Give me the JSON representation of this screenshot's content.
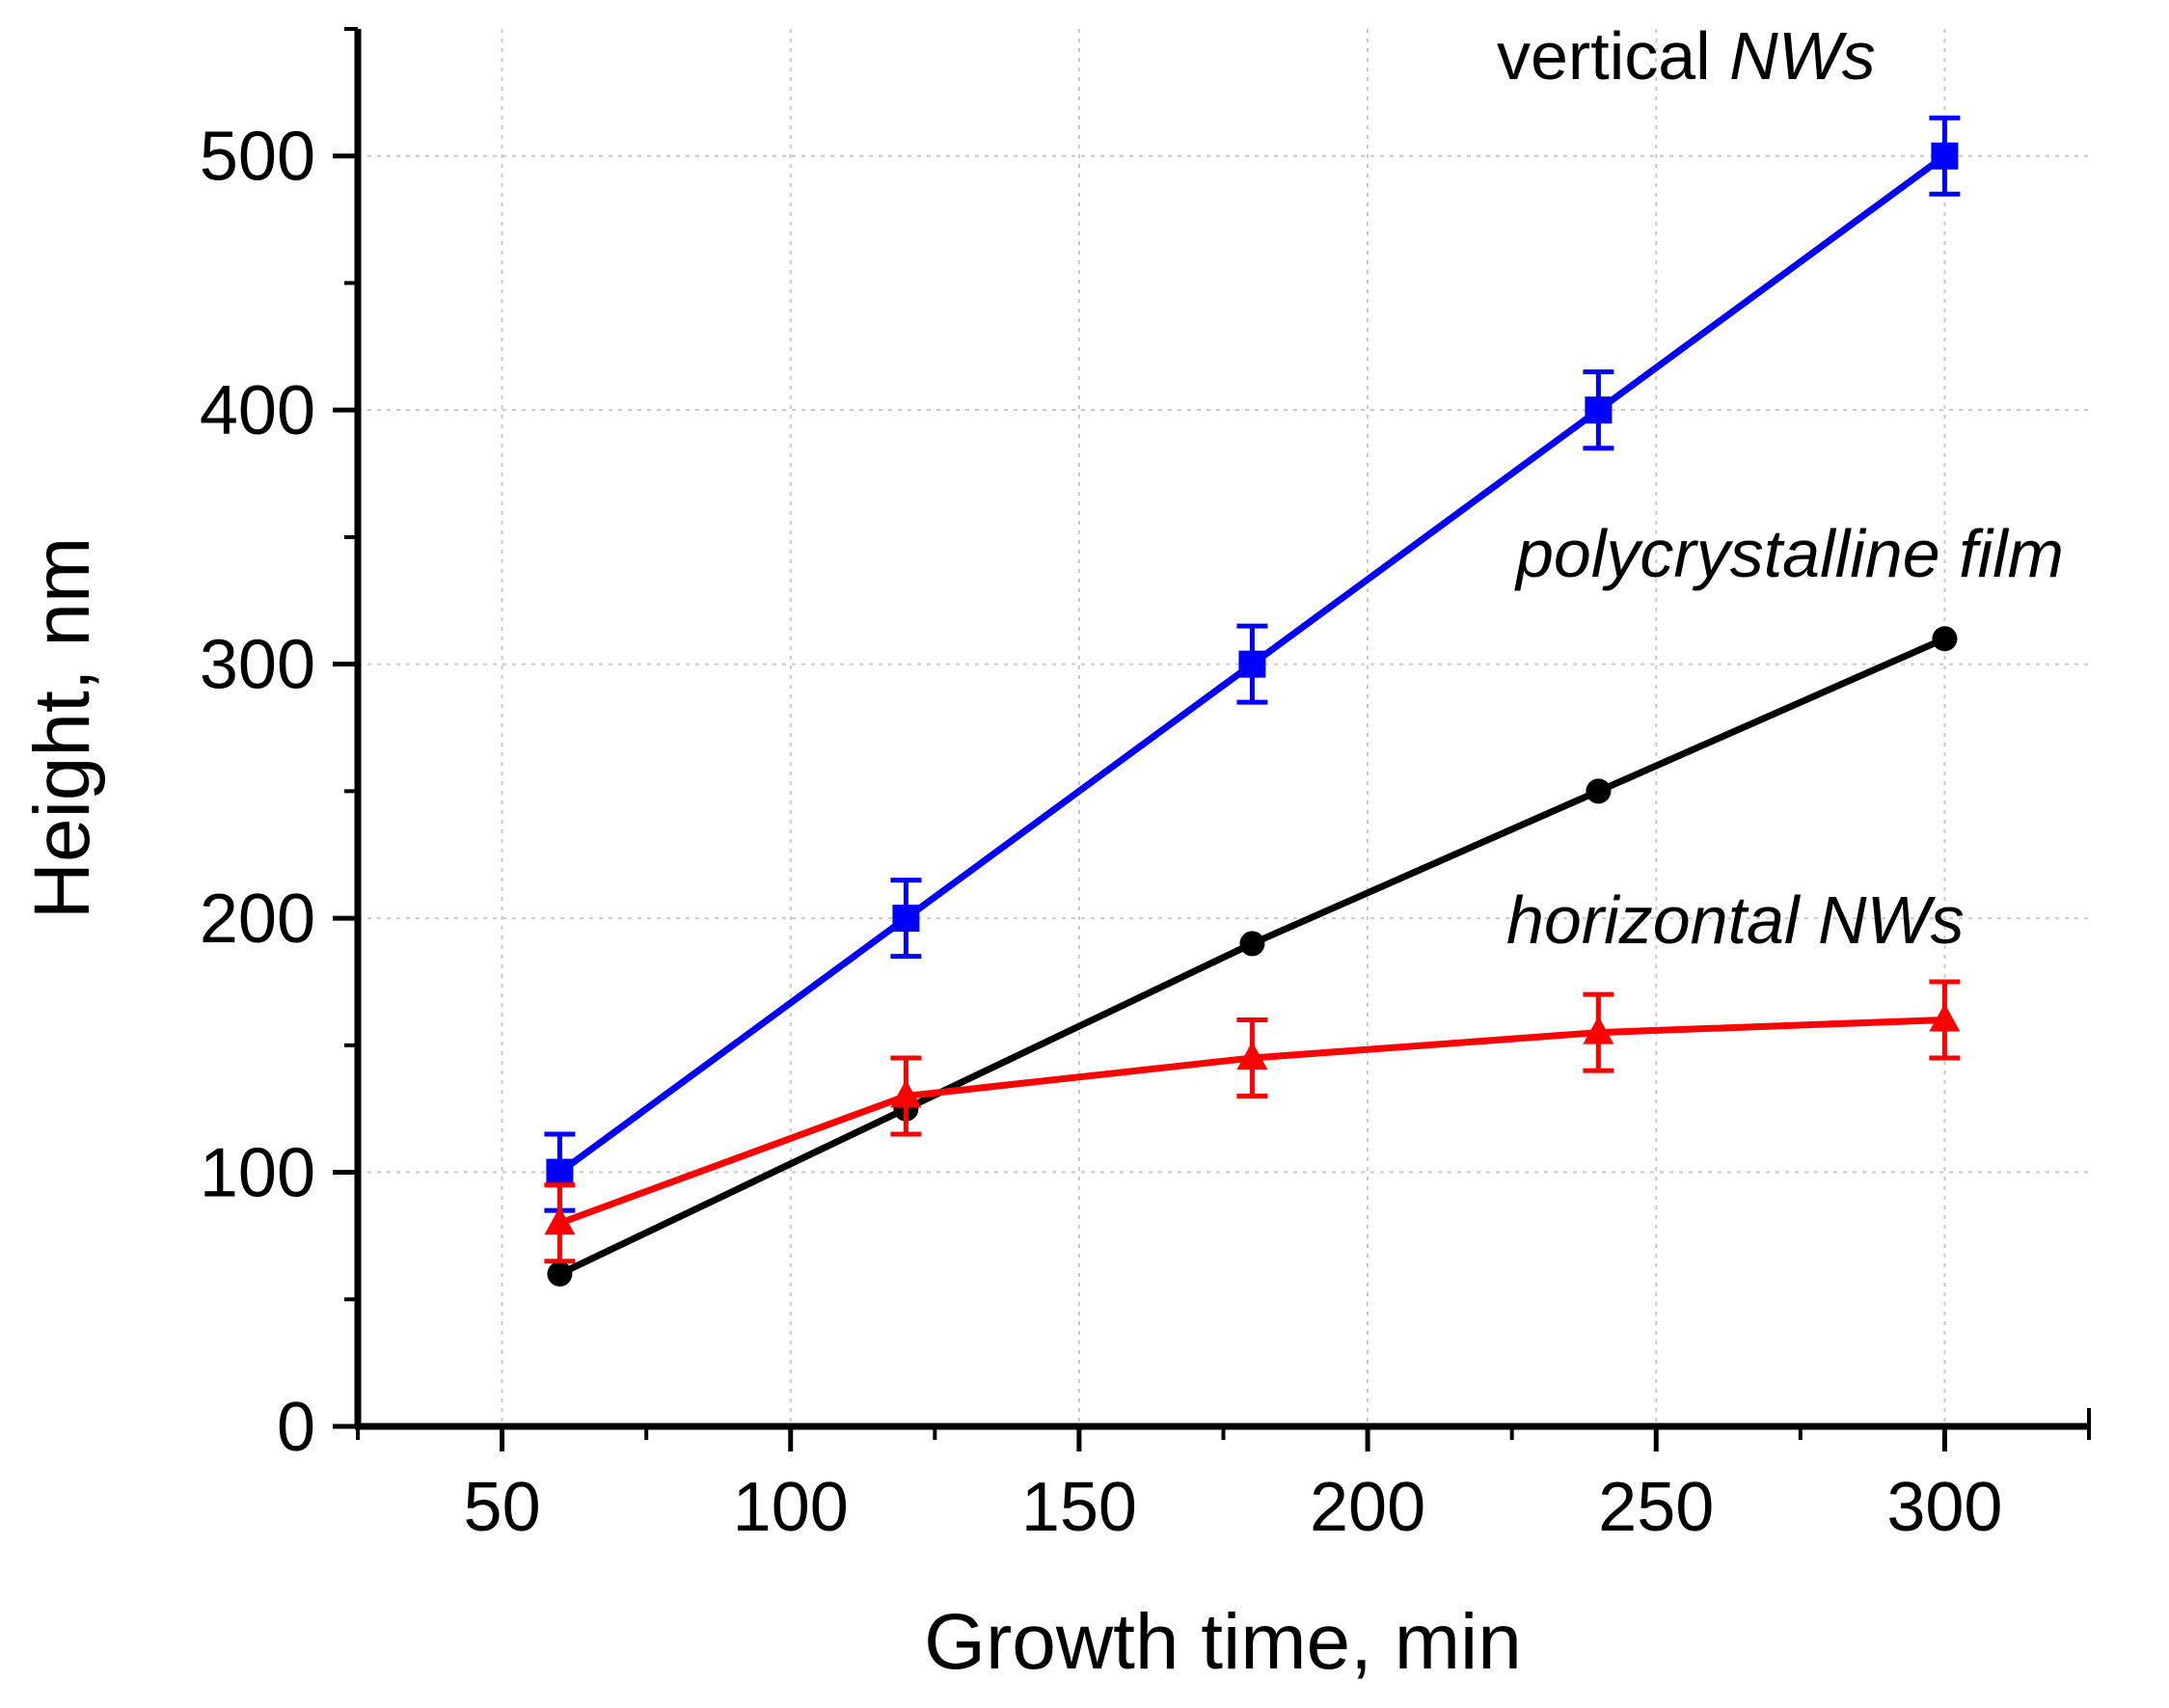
{
  "chart_data": {
    "type": "line",
    "title": "",
    "xlabel": "Growth time, min",
    "ylabel": "Height, nm",
    "xlim": [
      25,
      325
    ],
    "ylim": [
      0,
      550
    ],
    "x_ticks": [
      50,
      100,
      150,
      200,
      250,
      300
    ],
    "y_ticks": [
      0,
      100,
      200,
      300,
      400,
      500
    ],
    "x_tick_labels": [
      "50",
      "100",
      "150",
      "200",
      "250",
      "300"
    ],
    "y_tick_labels": [
      "0",
      "100",
      "200",
      "300",
      "400",
      "500"
    ],
    "grid": true,
    "series": [
      {
        "name": "vertical NWs",
        "color": "#0000ff",
        "marker": "square",
        "x": [
          60,
          120,
          180,
          240,
          300
        ],
        "values": [
          100,
          200,
          300,
          400,
          500
        ],
        "errors": [
          15,
          15,
          15,
          15,
          15
        ]
      },
      {
        "name": "polycrystalline film",
        "color": "#000000",
        "marker": "circle",
        "x": [
          60,
          120,
          180,
          240,
          300
        ],
        "values": [
          60,
          125,
          190,
          250,
          310
        ],
        "errors": [
          0,
          0,
          0,
          0,
          0
        ]
      },
      {
        "name": "horizontal NWs",
        "color": "#ff0000",
        "marker": "triangle",
        "x": [
          60,
          120,
          180,
          240,
          300
        ],
        "values": [
          80,
          130,
          145,
          155,
          160
        ],
        "errors": [
          15,
          15,
          15,
          15,
          15
        ]
      }
    ],
    "annotations": [
      {
        "series": 0,
        "prefix": "vertical ",
        "emph": "NWs"
      },
      {
        "series": 1,
        "prefix": "",
        "emph": "polycrystalline film"
      },
      {
        "series": 2,
        "prefix": "",
        "emph": "horizontal NWs"
      }
    ]
  }
}
